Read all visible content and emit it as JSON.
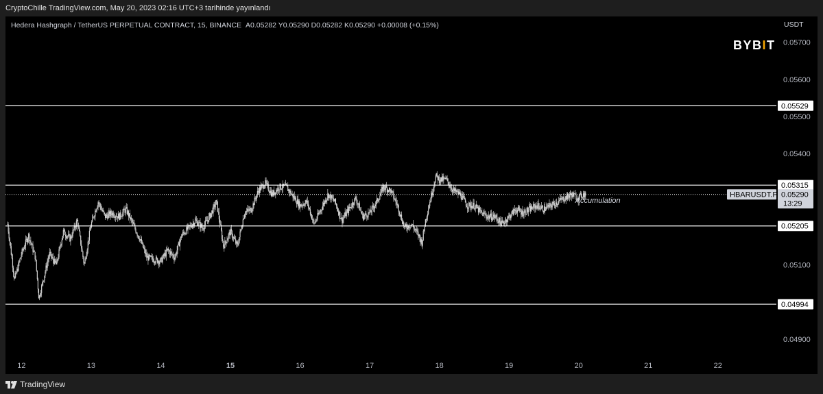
{
  "page": {
    "publish_note": "CryptoChille TradingView.com, May 20, 2023 02:16 UTC+3 tarihinde yayınlandı",
    "footer_brand": "TradingView"
  },
  "legend": {
    "symbol": "Hedera Hashgraph / TetherUS PERPETUAL CONTRACT, 15, BINANCE",
    "ohlc": [
      {
        "key": "A",
        "value": "0.05282"
      },
      {
        "key": "Y",
        "value": "0.05290"
      },
      {
        "key": "D",
        "value": "0.05282"
      },
      {
        "key": "K",
        "value": "0.05290"
      }
    ],
    "change": "+0.00008 (+0.15%)"
  },
  "brand_logo": {
    "text": "BYBIT",
    "accent_color": "#f7a600"
  },
  "colors": {
    "candle": "#cfcfcf",
    "level_line": "#ffffff",
    "background": "#000000"
  },
  "chart_data": {
    "type": "candlestick",
    "currency": "USDT",
    "ylim": [
      0.0485,
      0.0574
    ],
    "y_ticks": [
      "0.05700",
      "0.05600",
      "0.05500",
      "0.05400",
      "0.05100",
      "0.04900"
    ],
    "x_ticks": [
      {
        "label": "12",
        "day": 12,
        "bold": false
      },
      {
        "label": "13",
        "day": 13,
        "bold": false
      },
      {
        "label": "14",
        "day": 14,
        "bold": false
      },
      {
        "label": "15",
        "day": 15,
        "bold": true
      },
      {
        "label": "16",
        "day": 16,
        "bold": false
      },
      {
        "label": "17",
        "day": 17,
        "bold": false
      },
      {
        "label": "18",
        "day": 18,
        "bold": false
      },
      {
        "label": "19",
        "day": 19,
        "bold": false
      },
      {
        "label": "20",
        "day": 20,
        "bold": false
      },
      {
        "label": "21",
        "day": 21,
        "bold": false
      },
      {
        "label": "22",
        "day": 22,
        "bold": false
      }
    ],
    "xlim_days": [
      11.77,
      23.43
    ],
    "levels": [
      {
        "value": 0.05529,
        "label": "0.05529"
      },
      {
        "value": 0.05315,
        "label": "0.05315"
      },
      {
        "value": 0.05205,
        "label": "0.05205"
      },
      {
        "value": 0.04994,
        "label": "0.04994"
      }
    ],
    "last_price": {
      "value": 0.0529,
      "label": "0.05290",
      "symbol_tag": "HBARUSDT.P",
      "countdown": "13:29"
    },
    "annotation": {
      "text": "Accumulation",
      "day": 19.95,
      "price": 0.05267
    },
    "series_points": [
      [
        11.8,
        0.0521
      ],
      [
        11.9,
        0.0506
      ],
      [
        12.0,
        0.0513
      ],
      [
        12.1,
        0.0518
      ],
      [
        12.2,
        0.0512
      ],
      [
        12.25,
        0.0501
      ],
      [
        12.3,
        0.0505
      ],
      [
        12.4,
        0.0513
      ],
      [
        12.5,
        0.051
      ],
      [
        12.6,
        0.0519
      ],
      [
        12.7,
        0.0517
      ],
      [
        12.8,
        0.0522
      ],
      [
        12.85,
        0.0516
      ],
      [
        12.9,
        0.051
      ],
      [
        13.0,
        0.0521
      ],
      [
        13.1,
        0.0527
      ],
      [
        13.2,
        0.0523
      ],
      [
        13.3,
        0.0524
      ],
      [
        13.4,
        0.0523
      ],
      [
        13.5,
        0.0525
      ],
      [
        13.6,
        0.0521
      ],
      [
        13.7,
        0.0517
      ],
      [
        13.8,
        0.0512
      ],
      [
        14.0,
        0.0511
      ],
      [
        14.1,
        0.0514
      ],
      [
        14.2,
        0.0512
      ],
      [
        14.3,
        0.0518
      ],
      [
        14.5,
        0.0522
      ],
      [
        14.6,
        0.052
      ],
      [
        14.7,
        0.0523
      ],
      [
        14.8,
        0.0527
      ],
      [
        14.9,
        0.0515
      ],
      [
        15.0,
        0.0519
      ],
      [
        15.1,
        0.0515
      ],
      [
        15.2,
        0.0524
      ],
      [
        15.3,
        0.0525
      ],
      [
        15.4,
        0.053
      ],
      [
        15.5,
        0.0532
      ],
      [
        15.6,
        0.0529
      ],
      [
        15.7,
        0.0531
      ],
      [
        15.8,
        0.0531
      ],
      [
        16.0,
        0.0526
      ],
      [
        16.1,
        0.0527
      ],
      [
        16.2,
        0.0521
      ],
      [
        16.3,
        0.0525
      ],
      [
        16.4,
        0.0529
      ],
      [
        16.5,
        0.0527
      ],
      [
        16.6,
        0.0522
      ],
      [
        16.7,
        0.0525
      ],
      [
        16.8,
        0.0528
      ],
      [
        16.9,
        0.0523
      ],
      [
        17.0,
        0.0524
      ],
      [
        17.1,
        0.0527
      ],
      [
        17.2,
        0.0531
      ],
      [
        17.3,
        0.053
      ],
      [
        17.4,
        0.0526
      ],
      [
        17.5,
        0.052
      ],
      [
        17.6,
        0.0521
      ],
      [
        17.7,
        0.0518
      ],
      [
        17.75,
        0.0516
      ],
      [
        17.8,
        0.0522
      ],
      [
        17.9,
        0.053
      ],
      [
        17.95,
        0.0534
      ],
      [
        18.0,
        0.0533
      ],
      [
        18.1,
        0.0533
      ],
      [
        18.2,
        0.053
      ],
      [
        18.3,
        0.0529
      ],
      [
        18.4,
        0.0526
      ],
      [
        18.5,
        0.0526
      ],
      [
        18.6,
        0.0524
      ],
      [
        18.7,
        0.0523
      ],
      [
        18.8,
        0.0523
      ],
      [
        18.9,
        0.0521
      ],
      [
        19.0,
        0.0523
      ],
      [
        19.1,
        0.0525
      ],
      [
        19.2,
        0.0524
      ],
      [
        19.3,
        0.0525
      ],
      [
        19.4,
        0.0526
      ],
      [
        19.5,
        0.0525
      ],
      [
        19.6,
        0.0526
      ],
      [
        19.7,
        0.0527
      ],
      [
        19.8,
        0.0528
      ],
      [
        19.9,
        0.0529
      ],
      [
        20.0,
        0.0528
      ],
      [
        20.05,
        0.0529
      ],
      [
        20.1,
        0.0529
      ]
    ]
  }
}
